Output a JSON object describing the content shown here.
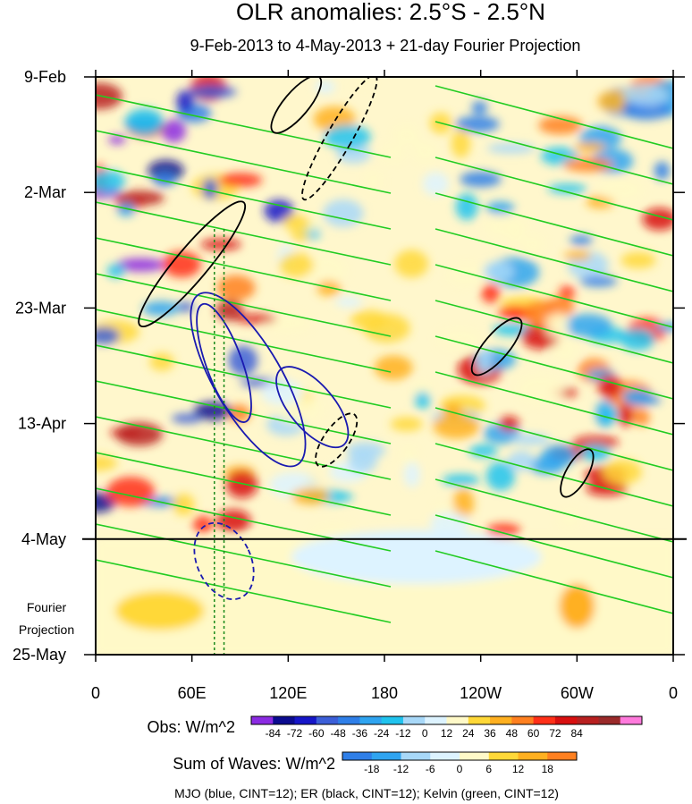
{
  "chart_data": {
    "type": "heatmap",
    "title": "OLR anomalies: 2.5°S - 2.5°N",
    "subtitle": "9-Feb-2013 to 4-May-2013 + 21-day Fourier Projection",
    "x_ticks": [
      "0",
      "60E",
      "120E",
      "180",
      "120W",
      "60W",
      "0"
    ],
    "x_ticks_deg_east": [
      0,
      60,
      120,
      180,
      240,
      300,
      360
    ],
    "xlim_deg_east": [
      0,
      360
    ],
    "y_ticks": [
      "9-Feb",
      "2-Mar",
      "23-Mar",
      "13-Apr",
      "4-May",
      "25-May"
    ],
    "y_ticks_date": [
      "2013-02-09",
      "2013-03-02",
      "2013-03-23",
      "2013-04-13",
      "2013-05-04",
      "2013-05-25"
    ],
    "ylim_date": [
      "2013-02-09",
      "2013-05-25"
    ],
    "y_direction": "time increases downward",
    "observation_end_date": "2013-05-04",
    "forecast_label": "Fourier Projection",
    "colorbars": [
      {
        "label": "Obs: W/m^2",
        "levels": [
          "-84",
          "-72",
          "-60",
          "-48",
          "-36",
          "-24",
          "-12",
          "0",
          "12",
          "24",
          "36",
          "48",
          "60",
          "72",
          "84"
        ],
        "colors": [
          "#8b2be2",
          "#0b0b8f",
          "#1616c8",
          "#3c5fd8",
          "#2f7fe8",
          "#2fa4f0",
          "#20c3ee",
          "#a8d8f8",
          "#ddf3ff",
          "#fff9c8",
          "#ffd838",
          "#ffb020",
          "#ff8020",
          "#ff3018",
          "#d81010",
          "#b82020",
          "#9a2a2a",
          "#ff7adc"
        ]
      },
      {
        "label": "Sum of Waves: W/m^2",
        "levels": [
          "-18",
          "-12",
          "-6",
          "0",
          "6",
          "12",
          "18"
        ],
        "colors": [
          "#2f7fe8",
          "#2fa4f0",
          "#a8d8f8",
          "#ddf3ff",
          "#fff9c8",
          "#ffd838",
          "#ffb020",
          "#ff8020"
        ]
      }
    ],
    "contours": [
      {
        "name": "MJO",
        "color": "#1a1ab0"
      },
      {
        "name": "ER",
        "color": "#000000"
      },
      {
        "name": "Kelvin",
        "color": "#22cc22"
      }
    ],
    "caption": "MJO (blue, CINT=12); ER (black, CINT=12); Kelvin (green, CINT=12)"
  }
}
